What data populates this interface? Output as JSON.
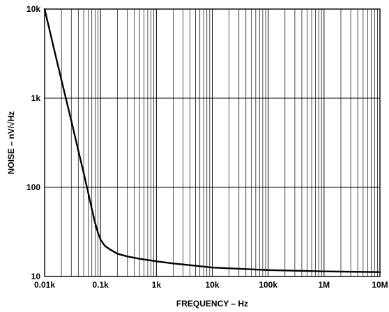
{
  "chart_data": {
    "type": "line",
    "xlabel": "FREQUENCY – Hz",
    "ylabel": "NOISE – nV/√Hz",
    "xscale": "log",
    "yscale": "log",
    "xlim": [
      10,
      10000000
    ],
    "ylim": [
      10,
      10000
    ],
    "grid": true,
    "x_tick_labels": [
      "0.01k",
      "0.1k",
      "1k",
      "10k",
      "100k",
      "1M",
      "10M"
    ],
    "y_tick_labels": [
      "10",
      "100",
      "1k",
      "10k"
    ],
    "series": [
      {
        "x": [
          10,
          15,
          20,
          30,
          40,
          50,
          60,
          70,
          80,
          90,
          100,
          120,
          150,
          200,
          300,
          500,
          1000,
          2000,
          5000,
          10000,
          100000,
          1000000,
          10000000
        ],
        "y": [
          10000,
          3400,
          1600,
          560,
          260,
          145,
          88,
          57,
          40,
          31,
          26,
          22,
          20,
          18,
          16.8,
          15.8,
          14.8,
          14.0,
          13.2,
          12.6,
          11.8,
          11.4,
          11.2
        ]
      }
    ],
    "colors": {
      "line": "#000000",
      "grid": "#000000",
      "background": "#ffffff"
    }
  }
}
